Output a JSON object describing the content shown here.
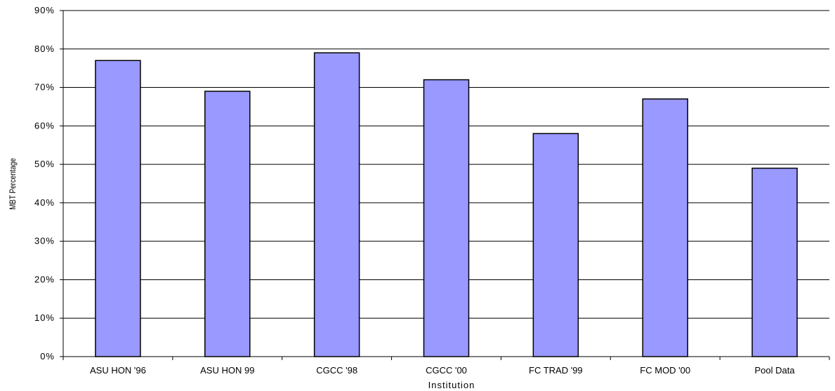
{
  "chart_data": {
    "type": "bar",
    "title": "",
    "xlabel": "Institution",
    "ylabel": "MBT Percentage",
    "categories": [
      "ASU HON '96",
      "ASU HON 99",
      "CGCC '98",
      "CGCC '00",
      "FC TRAD '99",
      "FC MOD '00",
      "Pool Data"
    ],
    "values": [
      77,
      69,
      79,
      72,
      58,
      67,
      49
    ],
    "ylim": [
      0,
      90
    ],
    "yticks": [
      "0%",
      "10%",
      "20%",
      "30%",
      "40%",
      "50%",
      "60%",
      "70%",
      "80%",
      "90%"
    ],
    "grid": true,
    "legend": "none"
  },
  "colors": {
    "bar_fill": "#9999ff",
    "bar_stroke": "#000000",
    "gridline": "#000000"
  }
}
